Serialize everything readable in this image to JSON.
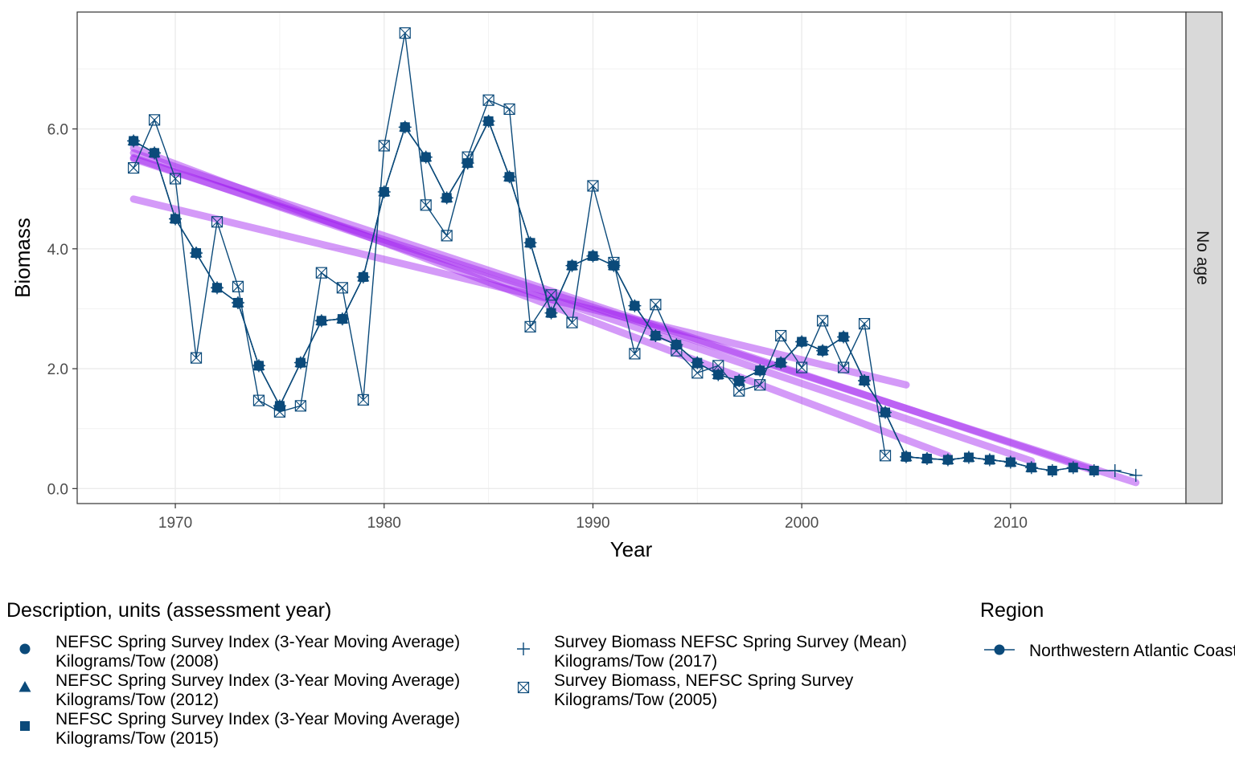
{
  "chart_data": {
    "type": "line",
    "xlabel": "Year",
    "ylabel": "Biomass",
    "xlim": [
      1965.3,
      2018.4
    ],
    "ylim": [
      -0.25,
      7.95
    ],
    "x_ticks": [
      1970,
      1980,
      1990,
      2000,
      2010
    ],
    "y_ticks": [
      0,
      2,
      4,
      6
    ],
    "y_tick_labels": [
      "0.0",
      "2.0",
      "4.0",
      "6.0"
    ],
    "grid": true,
    "facet_label": "No age",
    "line_color": "#0b4a7a",
    "trend_color": "#a020f0",
    "series": [
      {
        "name": "NEFSC Spring Survey Index (3-Year Moving Average) Kilograms/Tow (2008)",
        "marker": "circle",
        "x": [
          1968,
          1969,
          1970,
          1971,
          1972,
          1973,
          1974,
          1975,
          1976,
          1977,
          1978,
          1979,
          1980,
          1981,
          1982,
          1983,
          1984,
          1985,
          1986,
          1987,
          1988,
          1989,
          1990,
          1991,
          1992,
          1993,
          1994,
          1995,
          1996,
          1997,
          1998,
          1999,
          2000,
          2001,
          2002,
          2003,
          2004,
          2005,
          2006,
          2007
        ],
        "values": [
          5.8,
          5.6,
          4.5,
          3.93,
          3.35,
          3.1,
          2.05,
          1.38,
          2.1,
          2.8,
          2.83,
          3.53,
          4.95,
          6.03,
          5.53,
          4.85,
          5.43,
          6.13,
          5.2,
          4.1,
          2.93,
          3.72,
          3.88,
          3.72,
          3.05,
          2.55,
          2.4,
          2.1,
          1.9,
          1.8,
          1.97,
          2.1,
          2.45,
          2.3,
          2.53,
          1.8,
          1.27,
          0.53,
          0.5,
          0.48
        ]
      },
      {
        "name": "NEFSC Spring Survey Index (3-Year Moving Average) Kilograms/Tow (2012)",
        "marker": "triangle",
        "x": [
          1968,
          1969,
          1970,
          1971,
          1972,
          1973,
          1974,
          1975,
          1976,
          1977,
          1978,
          1979,
          1980,
          1981,
          1982,
          1983,
          1984,
          1985,
          1986,
          1987,
          1988,
          1989,
          1990,
          1991,
          1992,
          1993,
          1994,
          1995,
          1996,
          1997,
          1998,
          1999,
          2000,
          2001,
          2002,
          2003,
          2004,
          2005,
          2006,
          2007,
          2008,
          2009,
          2010,
          2011
        ],
        "values": [
          5.8,
          5.6,
          4.5,
          3.93,
          3.35,
          3.1,
          2.05,
          1.38,
          2.1,
          2.8,
          2.83,
          3.53,
          4.95,
          6.03,
          5.53,
          4.85,
          5.43,
          6.13,
          5.2,
          4.1,
          2.93,
          3.72,
          3.88,
          3.72,
          3.05,
          2.55,
          2.4,
          2.1,
          1.9,
          1.8,
          1.97,
          2.1,
          2.45,
          2.3,
          2.53,
          1.8,
          1.27,
          0.53,
          0.5,
          0.48,
          0.52,
          0.48,
          0.44,
          0.35
        ]
      },
      {
        "name": "NEFSC Spring Survey Index (3-Year Moving Average) Kilograms/Tow (2015)",
        "marker": "square",
        "x": [
          1968,
          1969,
          1970,
          1971,
          1972,
          1973,
          1974,
          1975,
          1976,
          1977,
          1978,
          1979,
          1980,
          1981,
          1982,
          1983,
          1984,
          1985,
          1986,
          1987,
          1988,
          1989,
          1990,
          1991,
          1992,
          1993,
          1994,
          1995,
          1996,
          1997,
          1998,
          1999,
          2000,
          2001,
          2002,
          2003,
          2004,
          2005,
          2006,
          2007,
          2008,
          2009,
          2010,
          2011,
          2012,
          2013,
          2014
        ],
        "values": [
          5.8,
          5.6,
          4.5,
          3.93,
          3.35,
          3.1,
          2.05,
          1.38,
          2.1,
          2.8,
          2.83,
          3.53,
          4.95,
          6.03,
          5.53,
          4.85,
          5.43,
          6.13,
          5.2,
          4.1,
          2.93,
          3.72,
          3.88,
          3.72,
          3.05,
          2.55,
          2.4,
          2.1,
          1.9,
          1.8,
          1.97,
          2.1,
          2.45,
          2.3,
          2.53,
          1.8,
          1.27,
          0.53,
          0.5,
          0.48,
          0.52,
          0.48,
          0.44,
          0.35,
          0.3,
          0.35,
          0.3
        ]
      },
      {
        "name": "Survey Biomass NEFSC Spring Survey (Mean) Kilograms/Tow (2017)",
        "marker": "plus",
        "x": [
          1968,
          1969,
          1970,
          1971,
          1972,
          1973,
          1974,
          1975,
          1976,
          1977,
          1978,
          1979,
          1980,
          1981,
          1982,
          1983,
          1984,
          1985,
          1986,
          1987,
          1988,
          1989,
          1990,
          1991,
          1992,
          1993,
          1994,
          1995,
          1996,
          1997,
          1998,
          1999,
          2000,
          2001,
          2002,
          2003,
          2004,
          2005,
          2006,
          2007,
          2008,
          2009,
          2010,
          2011,
          2012,
          2013,
          2014,
          2015,
          2016
        ],
        "values": [
          5.8,
          5.6,
          4.5,
          3.93,
          3.35,
          3.1,
          2.05,
          1.38,
          2.1,
          2.8,
          2.83,
          3.53,
          4.95,
          6.03,
          5.53,
          4.85,
          5.43,
          6.13,
          5.2,
          4.1,
          2.93,
          3.72,
          3.88,
          3.72,
          3.05,
          2.55,
          2.4,
          2.1,
          1.9,
          1.8,
          1.97,
          2.1,
          2.45,
          2.3,
          2.53,
          1.8,
          1.27,
          0.53,
          0.5,
          0.48,
          0.52,
          0.48,
          0.44,
          0.35,
          0.3,
          0.35,
          0.3,
          0.3,
          0.22
        ]
      },
      {
        "name": "Survey Biomass, NEFSC Spring Survey Kilograms/Tow (2005)",
        "marker": "square-x",
        "x": [
          1968,
          1969,
          1970,
          1971,
          1972,
          1973,
          1974,
          1975,
          1976,
          1977,
          1978,
          1979,
          1980,
          1981,
          1982,
          1983,
          1984,
          1985,
          1986,
          1987,
          1988,
          1989,
          1990,
          1991,
          1992,
          1993,
          1994,
          1995,
          1996,
          1997,
          1998,
          1999,
          2000,
          2001,
          2002,
          2003,
          2004
        ],
        "values": [
          5.35,
          6.15,
          5.17,
          2.18,
          4.45,
          3.37,
          1.47,
          1.28,
          1.38,
          3.6,
          3.35,
          1.48,
          5.72,
          7.6,
          4.73,
          4.22,
          5.53,
          6.48,
          6.33,
          2.7,
          3.23,
          2.77,
          5.05,
          3.77,
          2.25,
          3.07,
          2.3,
          1.93,
          2.05,
          1.63,
          1.73,
          2.55,
          2.02,
          2.8,
          2.02,
          2.75,
          0.55
        ]
      }
    ],
    "trend_lines": [
      {
        "x": [
          1968,
          2005
        ],
        "values": [
          4.83,
          1.73
        ]
      },
      {
        "x": [
          1968,
          2007
        ],
        "values": [
          5.68,
          0.55
        ]
      },
      {
        "x": [
          1968,
          2011
        ],
        "values": [
          5.52,
          0.46
        ]
      },
      {
        "x": [
          1968,
          2014
        ],
        "values": [
          5.6,
          0.3
        ]
      },
      {
        "x": [
          1968,
          2016
        ],
        "values": [
          5.5,
          0.1
        ]
      }
    ],
    "legend": {
      "description_title": "Description, units (assessment year)",
      "description_items": [
        {
          "marker": "circle",
          "line1": "NEFSC Spring Survey Index (3-Year Moving Average)",
          "line2": "Kilograms/Tow (2008)"
        },
        {
          "marker": "triangle",
          "line1": "NEFSC Spring Survey Index (3-Year Moving Average)",
          "line2": "Kilograms/Tow (2012)"
        },
        {
          "marker": "square",
          "line1": "NEFSC Spring Survey Index (3-Year Moving Average)",
          "line2": "Kilograms/Tow (2015)"
        },
        {
          "marker": "plus",
          "line1": "Survey Biomass NEFSC Spring Survey (Mean)",
          "line2": "Kilograms/Tow (2017)"
        },
        {
          "marker": "square-x",
          "line1": "Survey Biomass, NEFSC Spring Survey",
          "line2": "Kilograms/Tow (2005)"
        }
      ],
      "region_title": "Region",
      "region_items": [
        "Northwestern Atlantic Coast"
      ],
      "placement": "bottom"
    }
  }
}
